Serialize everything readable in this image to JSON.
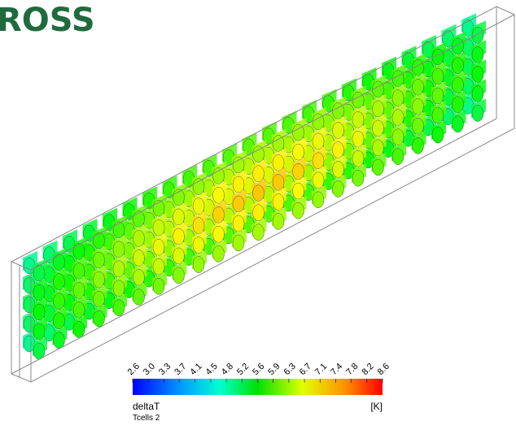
{
  "logo": "ROSS",
  "colorbar": {
    "ticks": [
      "2.6",
      "3.0",
      "3.3",
      "3.7",
      "4.1",
      "4.5",
      "4.8",
      "5.2",
      "5.6",
      "5.9",
      "6.3",
      "6.7",
      "7.1",
      "7.4",
      "7.8",
      "8.2",
      "8.6"
    ],
    "variable": "deltaT",
    "unit": "[K]",
    "subtitle": "Tcells 2"
  }
}
